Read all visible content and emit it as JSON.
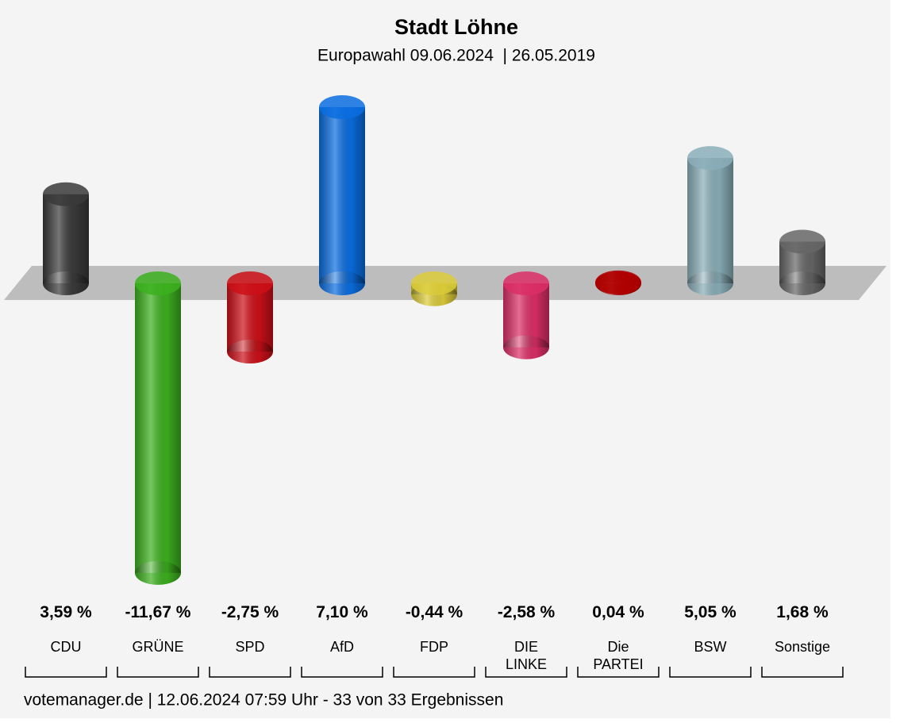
{
  "chart_data": {
    "type": "bar",
    "title": "Stadt Löhne",
    "subtitle": "Europawahl 09.06.2024  | 26.05.2019",
    "categories": [
      "CDU",
      "GRÜNE",
      "SPD",
      "AfD",
      "FDP",
      "DIE\nLINKE",
      "Die\nPARTEI",
      "BSW",
      "Sonstige"
    ],
    "values": [
      3.59,
      -11.67,
      -2.75,
      7.1,
      -0.44,
      -2.58,
      0.04,
      5.05,
      1.68
    ],
    "value_labels": [
      "3,59 %",
      "-11,67 %",
      "-2,75 %",
      "7,10 %",
      "-0,44 %",
      "-2,58 %",
      "0,04 %",
      "5,05 %",
      "1,68 %"
    ],
    "colors": [
      "#3a3a3a",
      "#3cb01e",
      "#cc0f18",
      "#0a6de0",
      "#dccc3a",
      "#dc2e66",
      "#b00000",
      "#8aaeb8",
      "#666666"
    ],
    "footer": "votemanager.de | 12.06.2024 07:59 Uhr - 33 von 33 Ergebnissen"
  }
}
